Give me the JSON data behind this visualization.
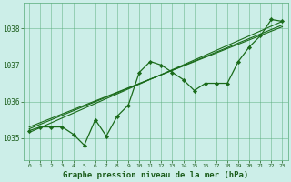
{
  "title": "Graphe pression niveau de la mer (hPa)",
  "background_color": "#cceee8",
  "grid_color": "#55aa77",
  "line_color": "#1a6b1a",
  "marker_color": "#1a6b1a",
  "axis_label_color": "#1a5c1a",
  "tick_label_color": "#1a5c1a",
  "xlim": [
    -0.5,
    23.5
  ],
  "ylim": [
    1034.4,
    1038.7
  ],
  "yticks": [
    1035,
    1036,
    1037,
    1038
  ],
  "xticks": [
    0,
    1,
    2,
    3,
    4,
    5,
    6,
    7,
    8,
    9,
    10,
    11,
    12,
    13,
    14,
    15,
    16,
    17,
    18,
    19,
    20,
    21,
    22,
    23
  ],
  "data_x": [
    0,
    1,
    2,
    3,
    4,
    5,
    6,
    7,
    8,
    9,
    10,
    11,
    12,
    13,
    14,
    15,
    16,
    17,
    18,
    19,
    20,
    21,
    22,
    23
  ],
  "data_y": [
    1035.2,
    1035.3,
    1035.3,
    1035.3,
    1035.1,
    1034.8,
    1035.5,
    1035.05,
    1035.6,
    1035.9,
    1036.8,
    1037.1,
    1037.0,
    1036.8,
    1036.6,
    1036.3,
    1036.5,
    1036.5,
    1036.5,
    1037.1,
    1037.5,
    1037.8,
    1038.25,
    1038.2
  ],
  "trend1": [
    1035.15,
    1038.2
  ],
  "trend2": [
    1035.25,
    1038.1
  ],
  "trend3": [
    1035.3,
    1038.05
  ]
}
